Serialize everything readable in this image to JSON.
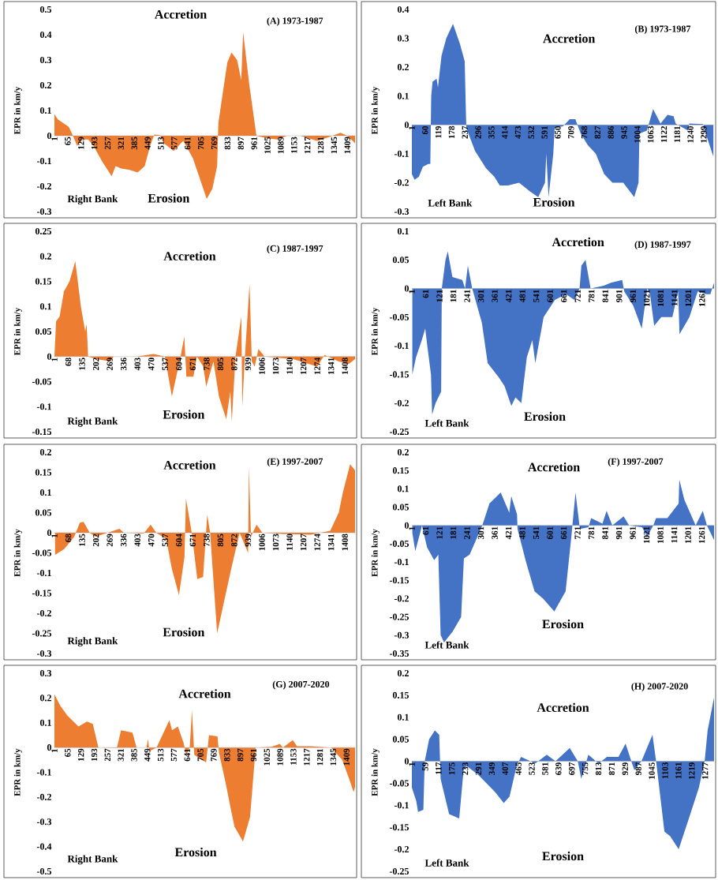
{
  "chart_data": [
    {
      "type": "area",
      "title": "(A) 1973-1987",
      "ylabel": "EPR in km/y",
      "annotations": [
        "Accretion",
        "Erosion",
        "Right Bank"
      ],
      "color": "#ed7d31",
      "xlim": [
        1,
        1446
      ],
      "ylim": [
        -0.3,
        0.5
      ],
      "yticks": [
        -0.3,
        -0.2,
        -0.1,
        0,
        0.1,
        0.2,
        0.3,
        0.4,
        0.5
      ],
      "xticks": [
        1,
        65,
        129,
        193,
        257,
        321,
        385,
        449,
        513,
        577,
        641,
        705,
        769,
        833,
        897,
        961,
        1025,
        1089,
        1153,
        1217,
        1281,
        1345,
        1409
      ],
      "x": [
        1,
        17,
        70,
        90,
        110,
        136,
        163,
        189,
        229,
        276,
        295,
        322,
        362,
        401,
        435,
        461,
        481,
        508,
        527,
        574,
        620,
        667,
        700,
        733,
        760,
        783,
        789,
        812,
        832,
        852,
        879,
        899,
        908,
        938,
        972,
        1025,
        1071,
        1118,
        1184,
        1263,
        1303,
        1376,
        1409,
        1446
      ],
      "values": [
        0.085,
        0.065,
        0.035,
        0,
        -0.04,
        -0.015,
        -0.015,
        -0.04,
        -0.1,
        -0.16,
        -0.12,
        -0.13,
        -0.135,
        -0.145,
        -0.12,
        -0.04,
        0.005,
        0.002,
        -0.03,
        -0.06,
        -0.02,
        -0.09,
        -0.17,
        -0.25,
        -0.21,
        -0.12,
        0.05,
        0.18,
        0.29,
        0.33,
        0.3,
        0.22,
        0.41,
        0.2,
        0,
        -0.01,
        -0.015,
        0,
        0,
        -0.02,
        -0.01,
        0.012,
        0,
        -0.03
      ]
    },
    {
      "type": "area",
      "title": "(B) 1973-1987",
      "ylabel": "EPR in km/y",
      "annotations": [
        "Accretion",
        "Erosion",
        "Left Bank"
      ],
      "color": "#4472c4",
      "xlim": [
        1,
        1345
      ],
      "ylim": [
        -0.3,
        0.4
      ],
      "yticks": [
        -0.3,
        -0.2,
        -0.1,
        0,
        0.1,
        0.2,
        0.3,
        0.4
      ],
      "xticks": [
        1,
        60,
        119,
        178,
        237,
        296,
        355,
        414,
        473,
        532,
        591,
        650,
        709,
        768,
        827,
        886,
        945,
        1004,
        1063,
        1122,
        1181,
        1240,
        1299
      ],
      "x": [
        1,
        13,
        32,
        50,
        74,
        83,
        87,
        93,
        111,
        117,
        133,
        154,
        184,
        215,
        236,
        243,
        282,
        331,
        368,
        392,
        429,
        478,
        526,
        563,
        593,
        599,
        609,
        630,
        636,
        673,
        703,
        728,
        752,
        783,
        819,
        856,
        893,
        941,
        990,
        1009,
        1013,
        1046,
        1074,
        1107,
        1138,
        1165,
        1174,
        1229,
        1235,
        1296,
        1308,
        1342
      ],
      "values": [
        -0.17,
        -0.19,
        -0.18,
        -0.145,
        -0.135,
        -0.135,
        0.1,
        0.15,
        0.16,
        0.13,
        0.24,
        0.3,
        0.35,
        0.28,
        0.22,
        -0.01,
        -0.09,
        -0.15,
        -0.18,
        -0.21,
        -0.21,
        -0.2,
        -0.23,
        -0.25,
        -0.2,
        -0.1,
        -0.25,
        -0.1,
        -0.01,
        -0.005,
        0.02,
        0.02,
        -0.03,
        -0.07,
        -0.1,
        -0.17,
        -0.2,
        -0.2,
        -0.25,
        -0.2,
        -0.03,
        -0.02,
        0.055,
        0.005,
        0.035,
        0.03,
        0.005,
        -0.02,
        0.005,
        0.003,
        -0.03,
        -0.11
      ]
    },
    {
      "type": "area",
      "title": "(C) 1987-1997",
      "ylabel": "EPR in km/y",
      "annotations": [
        "Accretion",
        "Erosion",
        "Right Bank"
      ],
      "color": "#ed7d31",
      "xlim": [
        1,
        1457
      ],
      "ylim": [
        -0.15,
        0.25
      ],
      "yticks": [
        -0.15,
        -0.1,
        -0.05,
        0,
        0.05,
        0.1,
        0.15,
        0.2,
        0.25
      ],
      "xticks": [
        1,
        68,
        135,
        202,
        269,
        336,
        403,
        470,
        537,
        604,
        671,
        738,
        805,
        872,
        939,
        1006,
        1073,
        1140,
        1207,
        1274,
        1341,
        1408
      ],
      "x": [
        1,
        9,
        26,
        47,
        74,
        102,
        129,
        150,
        157,
        164,
        205,
        274,
        287,
        398,
        481,
        536,
        570,
        612,
        630,
        640,
        674,
        691,
        722,
        736,
        771,
        798,
        833,
        853,
        860,
        878,
        906,
        911,
        922,
        946,
        957,
        971,
        989,
        1019,
        1157,
        1274,
        1309,
        1378,
        1426,
        1457
      ],
      "values": [
        0,
        0.07,
        0.08,
        0.13,
        0.15,
        0.19,
        0.1,
        0.05,
        0.065,
        0,
        -0.005,
        -0.01,
        0,
        0,
        0.005,
        0,
        -0.08,
        0,
        0.04,
        -0.04,
        -0.04,
        0,
        -0.02,
        -0.06,
        -0.01,
        -0.08,
        -0.125,
        -0.07,
        -0.13,
        0,
        0.08,
        -0.1,
        -0.01,
        0.145,
        -0.01,
        -0.02,
        0.015,
        0,
        -0.005,
        -0.02,
        0.003,
        -0.01,
        -0.015,
        -0.005
      ]
    },
    {
      "type": "area",
      "title": "(D) 1987-1997",
      "ylabel": "EPR in km/y",
      "annotations": [
        "Accretion",
        "Erosion",
        "Left Bank"
      ],
      "color": "#4472c4",
      "xlim": [
        1,
        1313
      ],
      "ylim": [
        -0.25,
        0.1
      ],
      "yticks": [
        -0.25,
        -0.2,
        -0.15,
        -0.1,
        -0.05,
        0,
        0.05,
        0.1
      ],
      "xticks": [
        1,
        61,
        121,
        181,
        241,
        301,
        361,
        421,
        481,
        541,
        601,
        661,
        721,
        781,
        841,
        901,
        961,
        1021,
        1081,
        1141,
        1201,
        1261
      ],
      "x": [
        3,
        19,
        44,
        59,
        68,
        84,
        89,
        104,
        128,
        131,
        147,
        157,
        177,
        220,
        232,
        244,
        263,
        305,
        330,
        378,
        403,
        433,
        451,
        476,
        500,
        524,
        537,
        573,
        622,
        670,
        707,
        729,
        737,
        755,
        777,
        834,
        865,
        914,
        923,
        962,
        999,
        1023,
        1035,
        1053,
        1084,
        1132,
        1157,
        1163,
        1206,
        1242,
        1279,
        1297,
        1313
      ],
      "values": [
        -0.15,
        -0.12,
        -0.09,
        -0.07,
        -0.1,
        -0.15,
        -0.22,
        -0.2,
        -0.18,
        0,
        0.05,
        0.065,
        0.02,
        0.015,
        0,
        0.04,
        0,
        -0.06,
        -0.13,
        -0.155,
        -0.17,
        -0.205,
        -0.19,
        -0.2,
        -0.12,
        -0.09,
        -0.13,
        -0.05,
        -0.02,
        -0.01,
        -0.02,
        0,
        0.04,
        0.05,
        0,
        0.005,
        0.01,
        0.015,
        -0.005,
        -0.03,
        -0.07,
        0,
        -0.01,
        -0.065,
        -0.05,
        -0.05,
        -0.005,
        -0.08,
        -0.05,
        -0.005,
        -0.01,
        -0.01,
        0.01
      ]
    },
    {
      "type": "area",
      "title": "(E) 1997-2007",
      "ylabel": "EPR in km/y",
      "annotations": [
        "Accretion",
        "Erosion",
        "Right Bank"
      ],
      "color": "#ed7d31",
      "xlim": [
        1,
        1457
      ],
      "ylim": [
        -0.3,
        0.2
      ],
      "yticks": [
        -0.3,
        -0.25,
        -0.2,
        -0.15,
        -0.1,
        -0.05,
        0,
        0.05,
        0.1,
        0.15,
        0.2
      ],
      "xticks": [
        1,
        68,
        135,
        202,
        269,
        336,
        403,
        470,
        537,
        604,
        671,
        738,
        805,
        872,
        939,
        1006,
        1073,
        1140,
        1207,
        1274,
        1341,
        1408
      ],
      "x": [
        4,
        49,
        97,
        124,
        142,
        172,
        200,
        241,
        316,
        337,
        433,
        467,
        494,
        542,
        570,
        604,
        631,
        638,
        666,
        693,
        721,
        741,
        755,
        789,
        823,
        857,
        898,
        939,
        943,
        953,
        980,
        1008,
        1104,
        1241,
        1337,
        1378,
        1398,
        1433,
        1457
      ],
      "values": [
        -0.055,
        -0.04,
        -0.01,
        0.025,
        0.027,
        0,
        -0.01,
        -0.003,
        0.01,
        0,
        -0.002,
        0.02,
        0,
        -0.015,
        -0.09,
        -0.155,
        -0.06,
        0.085,
        0,
        -0.115,
        -0.11,
        0.045,
        0,
        -0.25,
        -0.17,
        -0.09,
        0,
        -0.05,
        0.165,
        -0.01,
        0.02,
        0,
        -0.003,
        -0.005,
        0.005,
        0.05,
        0.1,
        0.17,
        0.155
      ]
    },
    {
      "type": "area",
      "title": "(F) 1997-2007",
      "ylabel": "EPR in km/y",
      "annotations": [
        "Accretion",
        "Erosion",
        "Left Bank"
      ],
      "color": "#4472c4",
      "xlim": [
        1,
        1314
      ],
      "ylim": [
        -0.35,
        0.2
      ],
      "yticks": [
        -0.35,
        -0.3,
        -0.25,
        -0.2,
        -0.15,
        -0.1,
        -0.05,
        0,
        0.05,
        0.1,
        0.15,
        0.2
      ],
      "xticks": [
        1,
        61,
        121,
        181,
        241,
        301,
        361,
        421,
        481,
        541,
        601,
        661,
        721,
        781,
        841,
        901,
        961,
        1021,
        1081,
        1141,
        1201,
        1261
      ],
      "x": [
        3,
        16,
        37,
        45,
        67,
        98,
        116,
        126,
        141,
        178,
        215,
        227,
        252,
        307,
        338,
        387,
        424,
        433,
        458,
        460,
        497,
        534,
        571,
        620,
        669,
        694,
        712,
        731,
        768,
        780,
        829,
        847,
        872,
        921,
        945,
        1001,
        1023,
        1050,
        1062,
        1111,
        1160,
        1163,
        1185,
        1234,
        1265,
        1283,
        1314
      ],
      "values": [
        -0.02,
        -0.07,
        -0.02,
        0,
        -0.06,
        -0.095,
        -0.08,
        -0.3,
        -0.32,
        -0.29,
        -0.25,
        -0.09,
        -0.08,
        0,
        0.06,
        0.09,
        0.035,
        0.08,
        0.03,
        -0.01,
        -0.1,
        -0.18,
        -0.2,
        -0.235,
        -0.18,
        -0.03,
        0.09,
        -0.01,
        -0.005,
        0.02,
        0.005,
        0.04,
        0,
        0.025,
        0,
        -0.005,
        -0.03,
        0,
        0.02,
        0.02,
        0.06,
        0.125,
        0.07,
        0,
        0.04,
        0,
        -0.04
      ]
    },
    {
      "type": "area",
      "title": "(G) 2007-2020",
      "ylabel": "EPR in km/y",
      "annotations": [
        "Accretion",
        "Erosion",
        "Right Bank"
      ],
      "color": "#ed7d31",
      "xlim": [
        1,
        1450
      ],
      "ylim": [
        -0.5,
        0.3
      ],
      "yticks": [
        -0.5,
        -0.4,
        -0.3,
        -0.2,
        -0.1,
        0,
        0.1,
        0.2,
        0.3
      ],
      "xticks": [
        1,
        65,
        129,
        193,
        257,
        321,
        385,
        449,
        513,
        577,
        641,
        705,
        769,
        833,
        897,
        961,
        1025,
        1089,
        1153,
        1217,
        1281,
        1345,
        1409
      ],
      "x": [
        1,
        28,
        62,
        117,
        158,
        186,
        213,
        302,
        322,
        377,
        397,
        445,
        452,
        459,
        493,
        527,
        555,
        568,
        596,
        623,
        637,
        653,
        664,
        675,
        732,
        746,
        787,
        794,
        828,
        849,
        869,
        910,
        944,
        971,
        1047,
        1088,
        1102,
        1150,
        1170,
        1238,
        1334,
        1388,
        1423,
        1443,
        1450
      ],
      "values": [
        0.215,
        0.17,
        0.13,
        0.085,
        0.105,
        0.095,
        0,
        -0.002,
        0.07,
        0.06,
        0,
        0,
        0.035,
        -0.015,
        0,
        0.06,
        0.11,
        0.07,
        0.085,
        0.02,
        -0.03,
        0,
        0.15,
        -0.03,
        -0.06,
        0.05,
        0.045,
        -0.02,
        -0.15,
        -0.24,
        -0.32,
        -0.38,
        -0.28,
        0,
        0.003,
        0.015,
        0,
        0.03,
        0.005,
        0.005,
        0,
        -0.05,
        -0.13,
        -0.18,
        -0.16
      ]
    },
    {
      "type": "area",
      "title": "(H) 2007-2020",
      "ylabel": "EPR in km/y",
      "annotations": [
        "Accretion",
        "Erosion",
        "Left Bank"
      ],
      "color": "#4472c4",
      "xlim": [
        1,
        1316
      ],
      "ylim": [
        -0.25,
        0.2
      ],
      "yticks": [
        -0.25,
        -0.2,
        -0.15,
        -0.1,
        -0.05,
        0,
        0.05,
        0.1,
        0.15,
        0.2
      ],
      "xticks": [
        1,
        59,
        117,
        175,
        233,
        291,
        349,
        407,
        465,
        523,
        581,
        639,
        697,
        755,
        813,
        871,
        929,
        987,
        1045,
        1103,
        1161,
        1219,
        1277
      ],
      "x": [
        1,
        20,
        28,
        51,
        57,
        76,
        101,
        120,
        126,
        163,
        207,
        226,
        238,
        288,
        363,
        401,
        426,
        457,
        476,
        538,
        588,
        626,
        688,
        723,
        738,
        769,
        813,
        850,
        900,
        931,
        956,
        969,
        1000,
        1048,
        1065,
        1100,
        1125,
        1162,
        1200,
        1250,
        1275,
        1288,
        1316
      ],
      "values": [
        -0.06,
        -0.09,
        -0.115,
        -0.11,
        0,
        0.05,
        0.07,
        0.06,
        -0.04,
        -0.12,
        -0.13,
        -0.02,
        -0.01,
        -0.03,
        -0.07,
        -0.095,
        -0.08,
        -0.01,
        0.01,
        -0.005,
        0.015,
        0,
        0.03,
        0,
        -0.04,
        0.015,
        -0.005,
        0.01,
        0.01,
        0.04,
        0,
        -0.02,
        0,
        0.06,
        -0.005,
        -0.16,
        -0.17,
        -0.2,
        -0.14,
        -0.06,
        0,
        0.07,
        0.145
      ]
    }
  ]
}
